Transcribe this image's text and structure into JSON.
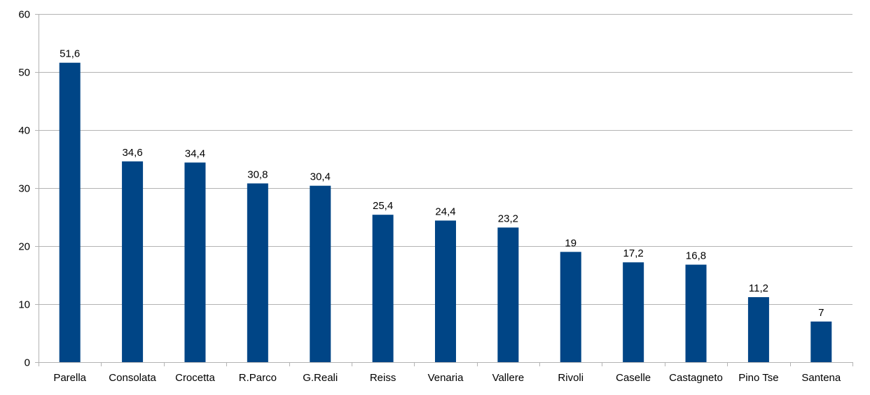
{
  "chart_data": {
    "type": "bar",
    "title": "",
    "xlabel": "",
    "ylabel": "",
    "categories": [
      "Parella",
      "Consolata",
      "Crocetta",
      "R.Parco",
      "G.Reali",
      "Reiss",
      "Venaria",
      "Vallere",
      "Rivoli",
      "Caselle",
      "Castagneto",
      "Pino Tse",
      "Santena"
    ],
    "values": [
      51.6,
      34.6,
      34.4,
      30.8,
      30.4,
      25.4,
      24.4,
      23.2,
      19,
      17.2,
      16.8,
      11.2,
      7
    ],
    "value_labels": [
      "51,6",
      "34,6",
      "34,4",
      "30,8",
      "30,4",
      "25,4",
      "24,4",
      "23,2",
      "19",
      "17,2",
      "16,8",
      "11,2",
      "7"
    ],
    "ylim": [
      0,
      60
    ],
    "yticks": [
      0,
      10,
      20,
      30,
      40,
      50,
      60
    ],
    "ytick_labels": [
      "0",
      "10",
      "20",
      "30",
      "40",
      "50",
      "60"
    ],
    "grid": true,
    "legend": "none",
    "colors": {
      "bar": "#004586",
      "grid": "#b3b3b3",
      "axis": "#b3b3b3"
    }
  }
}
